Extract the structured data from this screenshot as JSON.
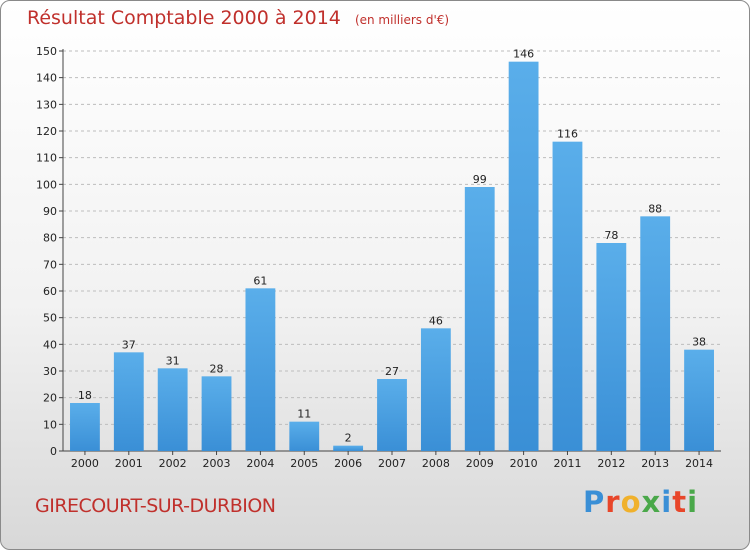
{
  "header": {
    "title": "Résultat Comptable 2000 à 2014",
    "subtitle": "(en milliers d'€)"
  },
  "footer": {
    "commune": "GIRECOURT-SUR-DURBION",
    "brand": "Proxiti",
    "brand_colors": [
      "#3a8fd6",
      "#e8462a",
      "#f0b12c",
      "#4aa84a",
      "#3a8fd6",
      "#e8462a",
      "#4aa84a"
    ]
  },
  "chart_data": {
    "type": "bar",
    "title": "Résultat Comptable 2000 à 2014",
    "subtitle": "(en milliers d'€)",
    "categories": [
      "2000",
      "2001",
      "2002",
      "2003",
      "2004",
      "2005",
      "2006",
      "2007",
      "2008",
      "2009",
      "2010",
      "2011",
      "2012",
      "2013",
      "2014"
    ],
    "values": [
      18,
      37,
      31,
      28,
      61,
      11,
      2,
      27,
      46,
      99,
      146,
      116,
      78,
      88,
      38
    ],
    "ylim": [
      0,
      150
    ],
    "yticks": [
      0,
      10,
      20,
      30,
      40,
      50,
      60,
      70,
      80,
      90,
      100,
      110,
      120,
      130,
      140,
      150
    ],
    "grid": true,
    "bar_color": "#3a8fd6",
    "bar_color_light": "#5aaeea",
    "xlabel": "",
    "ylabel": ""
  }
}
